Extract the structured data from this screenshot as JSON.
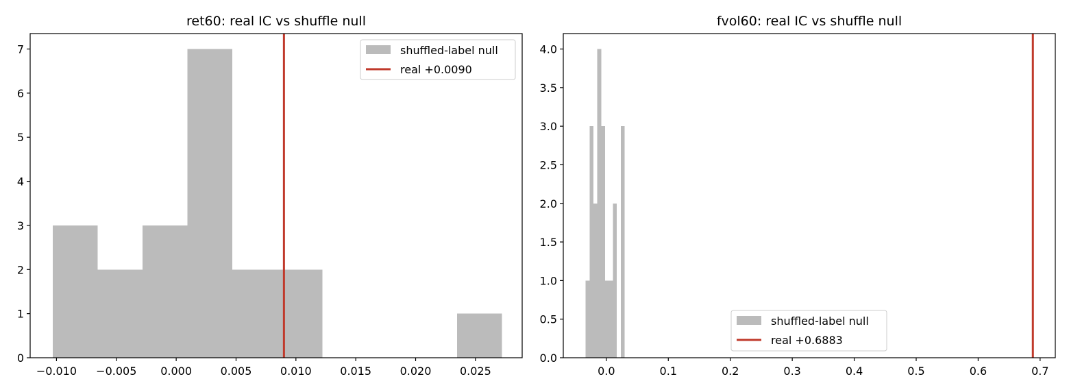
{
  "chart_data": [
    {
      "type": "bar",
      "title": "ret60: real IC vs shuffle null",
      "xlabel": "",
      "ylabel": "",
      "xlim": [
        -0.0122,
        0.0289
      ],
      "ylim": [
        0,
        7.35
      ],
      "grid": false,
      "legend_position": "top-right",
      "hist_bins": [
        {
          "x0": -0.0103,
          "x1": -0.00655,
          "count": 3
        },
        {
          "x0": -0.00655,
          "x1": -0.0028,
          "count": 2
        },
        {
          "x0": -0.0028,
          "x1": 0.00095,
          "count": 3
        },
        {
          "x0": 0.00095,
          "x1": 0.0047,
          "count": 7
        },
        {
          "x0": 0.0047,
          "x1": 0.00845,
          "count": 2
        },
        {
          "x0": 0.00845,
          "x1": 0.0122,
          "count": 2
        },
        {
          "x0": 0.0122,
          "x1": 0.01595,
          "count": 0
        },
        {
          "x0": 0.01595,
          "x1": 0.0197,
          "count": 0
        },
        {
          "x0": 0.0197,
          "x1": 0.02345,
          "count": 0
        },
        {
          "x0": 0.02345,
          "x1": 0.0272,
          "count": 1
        }
      ],
      "real_value": 0.009,
      "x_ticks": [
        {
          "v": -0.01,
          "label": "−0.010"
        },
        {
          "v": -0.005,
          "label": "−0.005"
        },
        {
          "v": 0.0,
          "label": "0.000"
        },
        {
          "v": 0.005,
          "label": "0.005"
        },
        {
          "v": 0.01,
          "label": "0.010"
        },
        {
          "v": 0.015,
          "label": "0.015"
        },
        {
          "v": 0.02,
          "label": "0.020"
        },
        {
          "v": 0.025,
          "label": "0.025"
        }
      ],
      "y_ticks": [
        {
          "v": 0,
          "label": "0"
        },
        {
          "v": 1,
          "label": "1"
        },
        {
          "v": 2,
          "label": "2"
        },
        {
          "v": 3,
          "label": "3"
        },
        {
          "v": 4,
          "label": "4"
        },
        {
          "v": 5,
          "label": "5"
        },
        {
          "v": 6,
          "label": "6"
        },
        {
          "v": 7,
          "label": "7"
        }
      ],
      "legend": [
        {
          "kind": "patch",
          "label": "shuffled-label null"
        },
        {
          "kind": "line",
          "label": "real +0.0090"
        }
      ]
    },
    {
      "type": "bar",
      "title": "fvol60: real IC vs shuffle null",
      "xlabel": "",
      "ylabel": "",
      "xlim": [
        -0.0695,
        0.7245
      ],
      "ylim": [
        0,
        4.2
      ],
      "grid": false,
      "legend_position": "bottom-center",
      "hist_bins": [
        {
          "x0": -0.0335,
          "x1": -0.0272,
          "count": 1
        },
        {
          "x0": -0.0272,
          "x1": -0.0209,
          "count": 3
        },
        {
          "x0": -0.0209,
          "x1": -0.0146,
          "count": 2
        },
        {
          "x0": -0.0146,
          "x1": -0.0083,
          "count": 4
        },
        {
          "x0": -0.0083,
          "x1": -0.002,
          "count": 3
        },
        {
          "x0": -0.002,
          "x1": 0.0043,
          "count": 1
        },
        {
          "x0": 0.0043,
          "x1": 0.0106,
          "count": 1
        },
        {
          "x0": 0.0106,
          "x1": 0.0169,
          "count": 2
        },
        {
          "x0": 0.0169,
          "x1": 0.0232,
          "count": 0
        },
        {
          "x0": 0.0232,
          "x1": 0.0295,
          "count": 3
        }
      ],
      "real_value": 0.6883,
      "x_ticks": [
        {
          "v": 0.0,
          "label": "0.0"
        },
        {
          "v": 0.1,
          "label": "0.1"
        },
        {
          "v": 0.2,
          "label": "0.2"
        },
        {
          "v": 0.3,
          "label": "0.3"
        },
        {
          "v": 0.4,
          "label": "0.4"
        },
        {
          "v": 0.5,
          "label": "0.5"
        },
        {
          "v": 0.6,
          "label": "0.6"
        },
        {
          "v": 0.7,
          "label": "0.7"
        }
      ],
      "y_ticks": [
        {
          "v": 0,
          "label": "0.0"
        },
        {
          "v": 0.5,
          "label": "0.5"
        },
        {
          "v": 1.0,
          "label": "1.0"
        },
        {
          "v": 1.5,
          "label": "1.5"
        },
        {
          "v": 2.0,
          "label": "2.0"
        },
        {
          "v": 2.5,
          "label": "2.5"
        },
        {
          "v": 3.0,
          "label": "3.0"
        },
        {
          "v": 3.5,
          "label": "3.5"
        },
        {
          "v": 4.0,
          "label": "4.0"
        }
      ],
      "legend": [
        {
          "kind": "patch",
          "label": "shuffled-label null"
        },
        {
          "kind": "line",
          "label": "real +0.6883"
        }
      ]
    }
  ],
  "colors": {
    "null_fill": "#bbbbbb",
    "real_line": "#c0392b",
    "axis": "#000000"
  }
}
